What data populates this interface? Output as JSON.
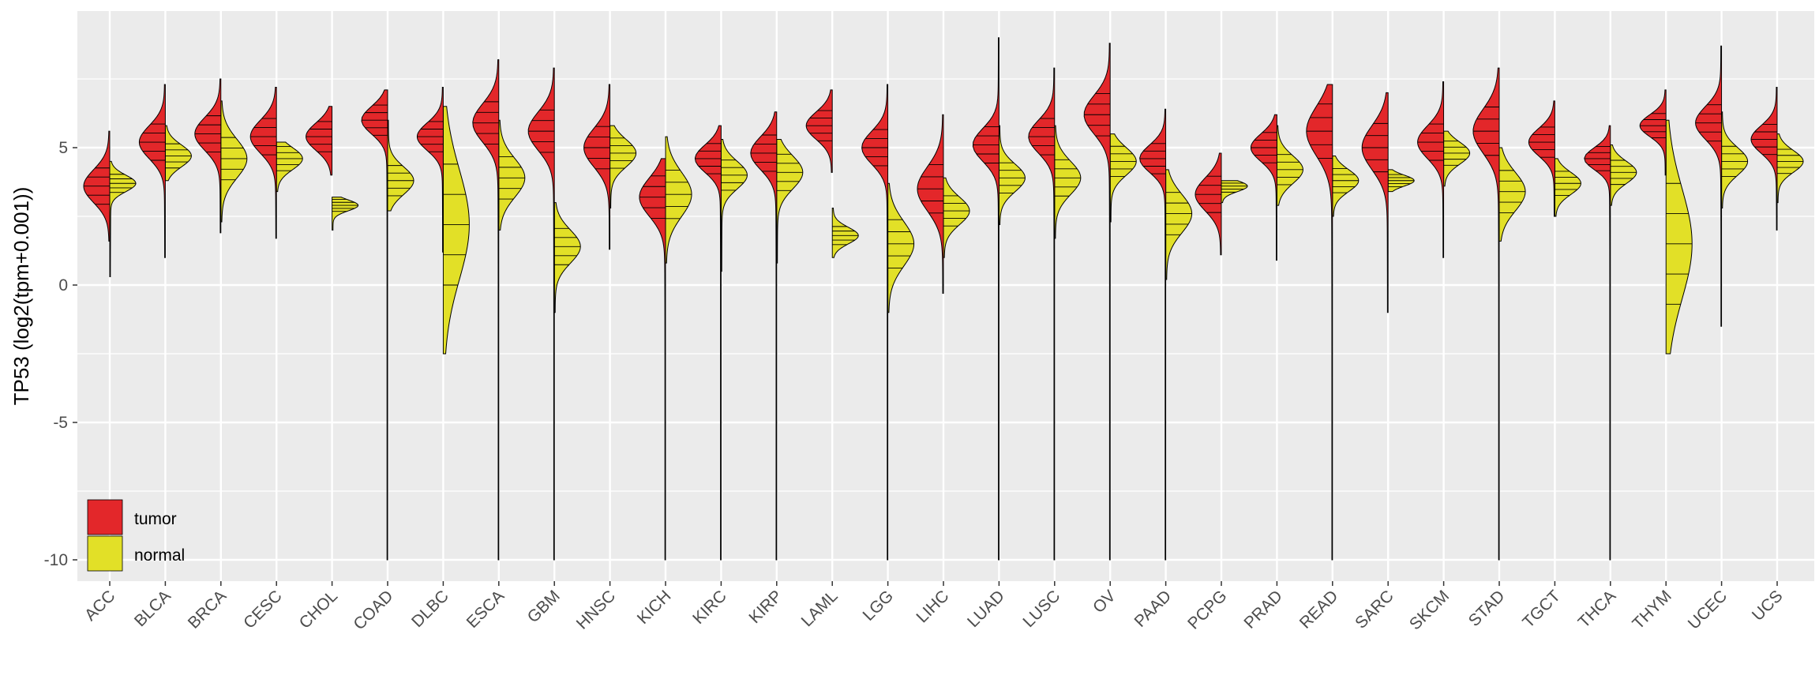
{
  "chart_data": {
    "type": "split-violin",
    "ylabel": "TP53 (log2(tpm+0.001))",
    "xlabel": "",
    "ylim": [
      -11,
      10
    ],
    "y_ticks": [
      -10,
      -5,
      0,
      5
    ],
    "grid": true,
    "legend_position": "bottom-left",
    "series": [
      {
        "name": "tumor",
        "color": "#E3272A"
      },
      {
        "name": "normal",
        "color": "#E2E027"
      }
    ],
    "categories": [
      "ACC",
      "BLCA",
      "BRCA",
      "CESC",
      "CHOL",
      "COAD",
      "DLBC",
      "ESCA",
      "GBM",
      "HNSC",
      "KICH",
      "KIRC",
      "KIRP",
      "LAML",
      "LGG",
      "LIHC",
      "LUAD",
      "LUSC",
      "OV",
      "PAAD",
      "PCPG",
      "PRAD",
      "READ",
      "SARC",
      "SKCM",
      "STAD",
      "TGCT",
      "THCA",
      "THYM",
      "UCEC",
      "UCS"
    ],
    "tumor": [
      {
        "min": 1.6,
        "max": 5.6,
        "center": 3.6,
        "spread": 0.6
      },
      {
        "min": 1.0,
        "max": 7.3,
        "center": 5.2,
        "spread": 0.6
      },
      {
        "min": 1.9,
        "max": 7.5,
        "center": 5.5,
        "spread": 0.6
      },
      {
        "min": 1.7,
        "max": 7.2,
        "center": 5.4,
        "spread": 0.6
      },
      {
        "min": 4.0,
        "max": 6.5,
        "center": 5.4,
        "spread": 0.5
      },
      {
        "min": -10.0,
        "max": 7.1,
        "center": 6.0,
        "spread": 0.5
      },
      {
        "min": 1.2,
        "max": 7.2,
        "center": 5.4,
        "spread": 0.5
      },
      {
        "min": -10.0,
        "max": 8.2,
        "center": 5.9,
        "spread": 0.7
      },
      {
        "min": -10.0,
        "max": 7.9,
        "center": 5.6,
        "spread": 0.7
      },
      {
        "min": 1.3,
        "max": 7.3,
        "center": 5.0,
        "spread": 0.7
      },
      {
        "min": -10.0,
        "max": 4.6,
        "center": 3.2,
        "spread": 0.7
      },
      {
        "min": -10.0,
        "max": 5.8,
        "center": 4.6,
        "spread": 0.5
      },
      {
        "min": -10.0,
        "max": 6.3,
        "center": 4.8,
        "spread": 0.6
      },
      {
        "min": 4.1,
        "max": 7.1,
        "center": 5.8,
        "spread": 0.5
      },
      {
        "min": -10.0,
        "max": 7.3,
        "center": 5.0,
        "spread": 0.6
      },
      {
        "min": -0.3,
        "max": 6.2,
        "center": 3.5,
        "spread": 0.8
      },
      {
        "min": -10.0,
        "max": 9.0,
        "center": 5.1,
        "spread": 0.6
      },
      {
        "min": -10.0,
        "max": 7.9,
        "center": 5.4,
        "spread": 0.6
      },
      {
        "min": -10.0,
        "max": 8.8,
        "center": 6.2,
        "spread": 0.7
      },
      {
        "min": -10.0,
        "max": 6.4,
        "center": 4.6,
        "spread": 0.5
      },
      {
        "min": 1.1,
        "max": 4.8,
        "center": 3.3,
        "spread": 0.6
      },
      {
        "min": 0.9,
        "max": 6.2,
        "center": 5.0,
        "spread": 0.5
      },
      {
        "min": -10.0,
        "max": 7.3,
        "center": 5.6,
        "spread": 0.9
      },
      {
        "min": -1.0,
        "max": 7.0,
        "center": 5.0,
        "spread": 0.8
      },
      {
        "min": 1.0,
        "max": 7.4,
        "center": 5.2,
        "spread": 0.6
      },
      {
        "min": -10.0,
        "max": 7.9,
        "center": 5.6,
        "spread": 0.8
      },
      {
        "min": 2.5,
        "max": 6.7,
        "center": 5.2,
        "spread": 0.5
      },
      {
        "min": -10.0,
        "max": 5.8,
        "center": 4.6,
        "spread": 0.4
      },
      {
        "min": 4.0,
        "max": 7.1,
        "center": 5.8,
        "spread": 0.4
      },
      {
        "min": -1.5,
        "max": 8.7,
        "center": 5.9,
        "spread": 0.6
      },
      {
        "min": 2.0,
        "max": 7.2,
        "center": 5.3,
        "spread": 0.5
      }
    ],
    "normal": [
      {
        "min": 0.3,
        "max": 4.5,
        "center": 3.7,
        "spread": 0.3
      },
      {
        "min": 3.8,
        "max": 5.8,
        "center": 4.7,
        "spread": 0.4
      },
      {
        "min": 2.3,
        "max": 6.7,
        "center": 4.6,
        "spread": 0.7
      },
      {
        "min": 3.4,
        "max": 5.2,
        "center": 4.6,
        "spread": 0.4
      },
      {
        "min": 2.0,
        "max": 3.2,
        "center": 2.9,
        "spread": 0.2
      },
      {
        "min": 2.7,
        "max": 6.0,
        "center": 3.8,
        "spread": 0.5
      },
      {
        "min": -2.5,
        "max": 6.5,
        "center": 2.2,
        "spread": 2.0
      },
      {
        "min": 2.0,
        "max": 6.0,
        "center": 3.9,
        "spread": 0.7
      },
      {
        "min": -1.0,
        "max": 3.0,
        "center": 1.4,
        "spread": 0.6
      },
      {
        "min": 2.8,
        "max": 5.8,
        "center": 4.8,
        "spread": 0.5
      },
      {
        "min": 0.8,
        "max": 5.4,
        "center": 3.3,
        "spread": 0.8
      },
      {
        "min": 0.5,
        "max": 5.3,
        "center": 4.0,
        "spread": 0.5
      },
      {
        "min": 0.8,
        "max": 5.3,
        "center": 4.1,
        "spread": 0.6
      },
      {
        "min": 1.0,
        "max": 2.8,
        "center": 1.8,
        "spread": 0.3
      },
      {
        "min": -1.0,
        "max": 3.7,
        "center": 1.5,
        "spread": 0.8
      },
      {
        "min": 1.0,
        "max": 3.9,
        "center": 2.7,
        "spread": 0.5
      },
      {
        "min": 2.2,
        "max": 5.8,
        "center": 3.9,
        "spread": 0.5
      },
      {
        "min": 1.7,
        "max": 5.8,
        "center": 3.9,
        "spread": 0.6
      },
      {
        "min": 2.3,
        "max": 5.5,
        "center": 4.5,
        "spread": 0.5
      },
      {
        "min": 0.2,
        "max": 4.2,
        "center": 2.6,
        "spread": 0.7
      },
      {
        "min": 3.0,
        "max": 3.8,
        "center": 3.6,
        "spread": 0.2
      },
      {
        "min": 2.9,
        "max": 5.8,
        "center": 4.2,
        "spread": 0.5
      },
      {
        "min": 2.5,
        "max": 4.7,
        "center": 3.8,
        "spread": 0.4
      },
      {
        "min": 3.4,
        "max": 4.2,
        "center": 3.8,
        "spread": 0.2
      },
      {
        "min": 3.6,
        "max": 5.6,
        "center": 4.8,
        "spread": 0.4
      },
      {
        "min": 1.6,
        "max": 5.0,
        "center": 3.4,
        "spread": 0.7
      },
      {
        "min": 2.5,
        "max": 4.6,
        "center": 3.7,
        "spread": 0.4
      },
      {
        "min": 2.9,
        "max": 5.1,
        "center": 4.1,
        "spread": 0.4
      },
      {
        "min": -2.5,
        "max": 6.0,
        "center": 1.5,
        "spread": 2.0
      },
      {
        "min": 2.8,
        "max": 6.3,
        "center": 4.5,
        "spread": 0.5
      },
      {
        "min": 3.0,
        "max": 5.5,
        "center": 4.5,
        "spread": 0.4
      }
    ]
  }
}
